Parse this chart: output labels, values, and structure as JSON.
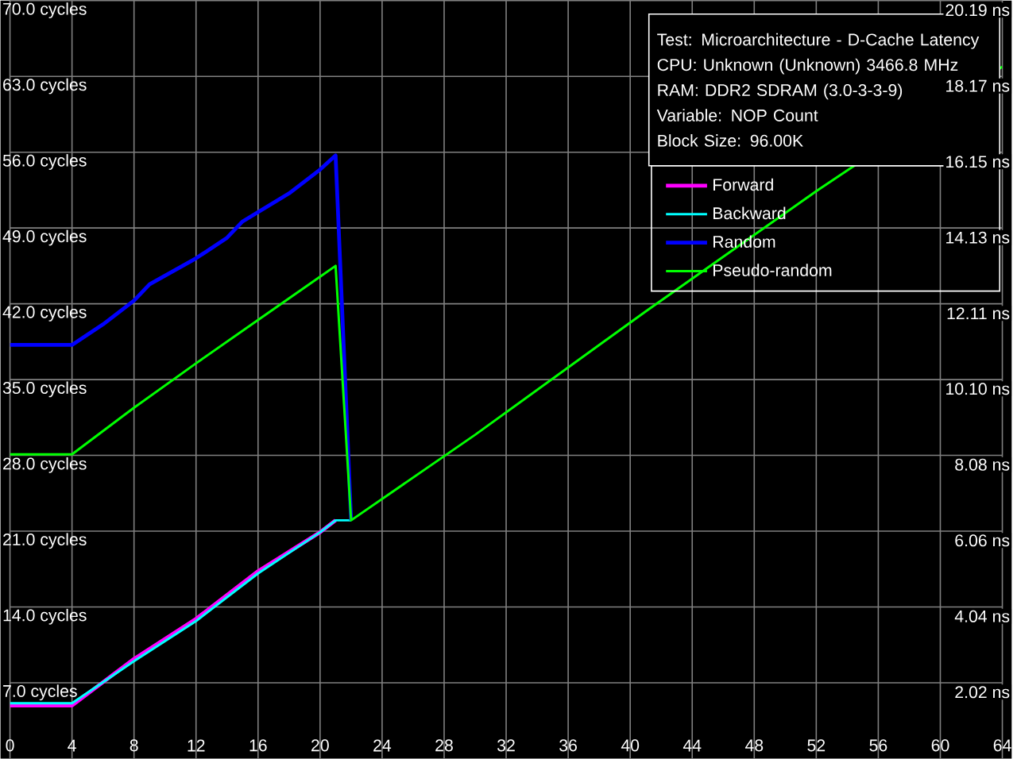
{
  "chart_data": {
    "type": "line",
    "title": "Test: Microarchitecture - D-Cache Latency",
    "annotations": [
      "CPU: Unknown (Unknown) 3466.8 MHz",
      "RAM: DDR2 SDRAM (3.0-3-3-9)",
      "Variable: NOP Count",
      "Block Size: 96.00K"
    ],
    "series": [
      {
        "name": "Forward",
        "color": "#ff00ff",
        "x": [
          0,
          4,
          8,
          12,
          16,
          20,
          21
        ],
        "values": [
          4.9,
          4.9,
          9.2,
          12.9,
          17.3,
          20.9,
          22.0
        ]
      },
      {
        "name": "Backward",
        "color": "#00ffff",
        "x": [
          0,
          4,
          8,
          12,
          16,
          20,
          21,
          22
        ],
        "values": [
          5.1,
          5.1,
          9.0,
          12.7,
          17.1,
          20.9,
          22.0,
          22.0
        ]
      },
      {
        "name": "Random",
        "color": "#0000ff",
        "x": [
          0,
          4,
          6,
          8,
          9,
          12,
          14,
          15,
          18,
          20,
          21,
          22
        ],
        "values": [
          38.2,
          38.2,
          40.1,
          42.3,
          43.8,
          46.2,
          48.1,
          49.6,
          52.2,
          54.4,
          55.7,
          22.0
        ]
      },
      {
        "name": "Pseudo-random",
        "color": "#00ff00",
        "x": [
          0,
          4,
          8,
          12,
          16,
          20,
          21,
          22,
          30,
          41,
          52,
          64
        ],
        "values": [
          28.1,
          28.1,
          32.4,
          36.5,
          40.5,
          44.5,
          45.5,
          22.0,
          29.9,
          41.3,
          52.4,
          63.9
        ]
      }
    ],
    "xlim": [
      0,
      64
    ],
    "xticks": [
      0,
      4,
      8,
      12,
      16,
      20,
      24,
      28,
      32,
      36,
      40,
      44,
      48,
      52,
      56,
      60,
      64
    ],
    "ylim": [
      0,
      70
    ],
    "yticks": [
      {
        "value": 7,
        "label": "7.0 cycles"
      },
      {
        "value": 14,
        "label": "14.0 cycles"
      },
      {
        "value": 21,
        "label": "21.0 cycles"
      },
      {
        "value": 28,
        "label": "28.0 cycles"
      },
      {
        "value": 35,
        "label": "35.0 cycles"
      },
      {
        "value": 42,
        "label": "42.0 cycles"
      },
      {
        "value": 49,
        "label": "49.0 cycles"
      },
      {
        "value": 56,
        "label": "56.0 cycles"
      },
      {
        "value": 63,
        "label": "63.0 cycles"
      },
      {
        "value": 70,
        "label": "70.0 cycles"
      }
    ],
    "y2lim": [
      0,
      20.19
    ],
    "y2ticks": [
      {
        "value": 2.02,
        "label": "2.02 ns"
      },
      {
        "value": 4.04,
        "label": "4.04 ns"
      },
      {
        "value": 6.06,
        "label": "6.06 ns"
      },
      {
        "value": 8.08,
        "label": "8.08 ns"
      },
      {
        "value": 10.1,
        "label": "10.10 ns"
      },
      {
        "value": 12.11,
        "label": "12.11 ns"
      },
      {
        "value": 14.13,
        "label": "14.13 ns"
      },
      {
        "value": 16.15,
        "label": "16.15 ns"
      },
      {
        "value": 18.17,
        "label": "18.17 ns"
      },
      {
        "value": 20.19,
        "label": "20.19 ns"
      }
    ],
    "grid": true,
    "legend": "top right"
  }
}
